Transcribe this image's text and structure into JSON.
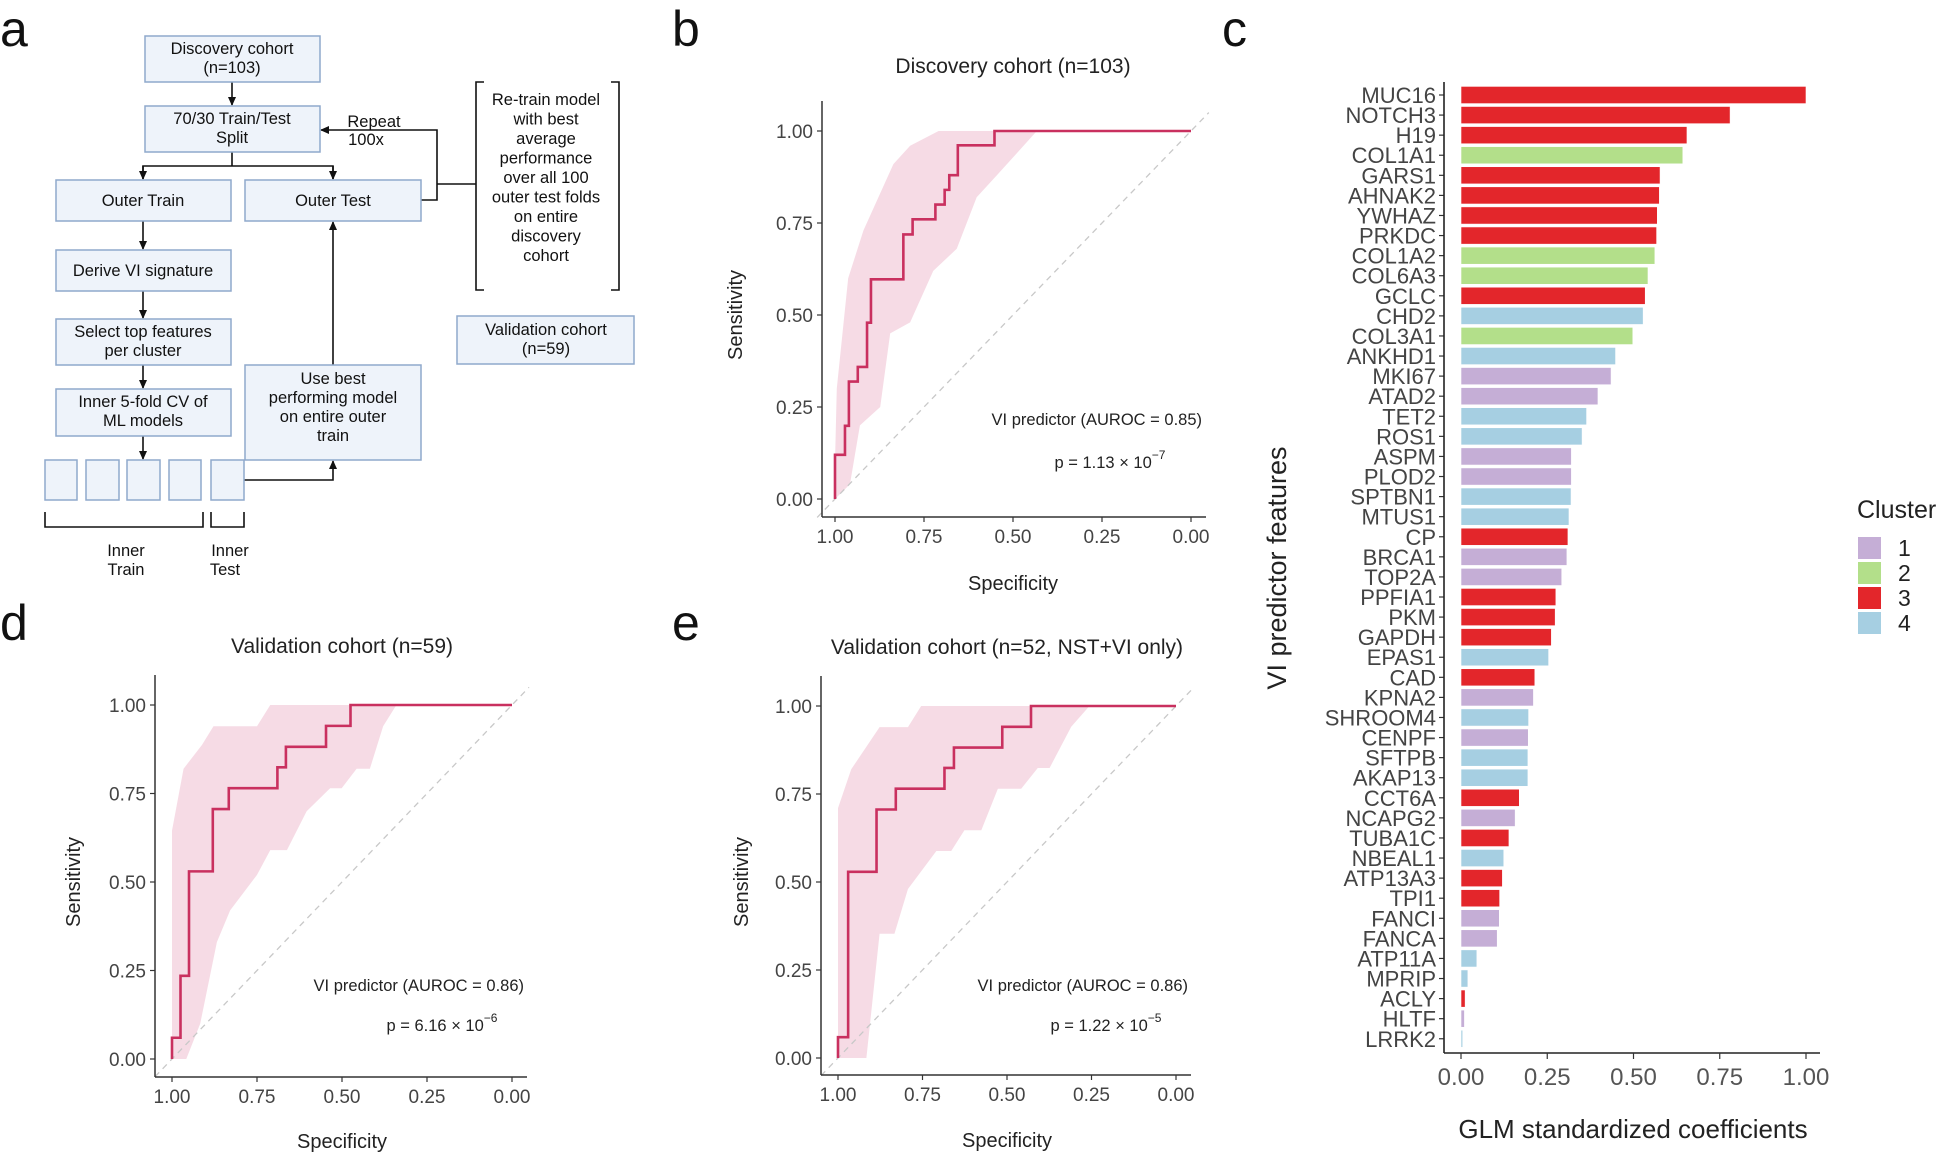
{
  "panel_letters": {
    "a": "a",
    "b": "b",
    "c": "c",
    "d": "d",
    "e": "e"
  },
  "flowchart": {
    "discovery": [
      "Discovery cohort",
      "(n=103)"
    ],
    "split": [
      "70/30 Train/Test",
      "Split"
    ],
    "repeat": [
      "Repeat",
      "100x"
    ],
    "outer_train": [
      "Outer Train"
    ],
    "outer_test": [
      "Outer Test"
    ],
    "derive": [
      "Derive VI signature"
    ],
    "select": [
      "Select top features",
      "per cluster"
    ],
    "inner_cv": [
      "Inner 5-fold CV of",
      "ML models"
    ],
    "use_best": [
      "Use best",
      "performing model",
      "on entire outer",
      "train"
    ],
    "retrain": [
      "Re-train model",
      "with best",
      "average",
      "performance",
      "over all 100",
      "outer test folds",
      "on entire",
      "discovery",
      "cohort"
    ],
    "validation": [
      "Validation cohort",
      "(n=59)"
    ],
    "inner_train": [
      "Inner",
      "Train"
    ],
    "inner_test": [
      "Inner",
      "Test"
    ]
  },
  "colors": {
    "roc_line": "#c9305f",
    "roc_band": "#f3cfdc",
    "cluster_1": "#c5aed6",
    "cluster_2": "#b3df8a",
    "cluster_3": "#e3262b",
    "cluster_4": "#a6cfe2"
  },
  "chart_data": [
    {
      "panel": "b",
      "type": "line",
      "title": "Discovery cohort (n=103)",
      "xlabel": "Specificity",
      "ylabel": "Sensitivity",
      "xlim": [
        1,
        0
      ],
      "ylim": [
        0,
        1
      ],
      "x_reversed": true,
      "xticks": [
        "1.00",
        "0.75",
        "0.50",
        "0.25",
        "0.00"
      ],
      "yticks": [
        "0.00",
        "0.25",
        "0.50",
        "0.75",
        "1.00"
      ],
      "annotation": "VI predictor (AUROC = 0.85)",
      "p_value": {
        "base": "p = 1.13 × 10",
        "exponent": "−7"
      },
      "series": [
        {
          "name": "VI predictor",
          "points": [
            [
              1,
              0
            ],
            [
              1,
              0.12
            ],
            [
              0.972,
              0.12
            ],
            [
              0.972,
              0.199
            ],
            [
              0.961,
              0.199
            ],
            [
              0.961,
              0.319
            ],
            [
              0.936,
              0.319
            ],
            [
              0.936,
              0.359
            ],
            [
              0.91,
              0.359
            ],
            [
              0.91,
              0.479
            ],
            [
              0.899,
              0.479
            ],
            [
              0.899,
              0.597
            ],
            [
              0.808,
              0.597
            ],
            [
              0.808,
              0.719
            ],
            [
              0.782,
              0.719
            ],
            [
              0.782,
              0.76
            ],
            [
              0.718,
              0.76
            ],
            [
              0.718,
              0.8
            ],
            [
              0.692,
              0.8
            ],
            [
              0.692,
              0.84
            ],
            [
              0.679,
              0.84
            ],
            [
              0.679,
              0.88
            ],
            [
              0.655,
              0.88
            ],
            [
              0.655,
              0.961
            ],
            [
              0.552,
              0.961
            ],
            [
              0.552,
              1
            ],
            [
              0,
              1
            ]
          ]
        }
      ],
      "ci_upper": [
        [
          1,
          0.1
        ],
        [
          0.995,
          0.3
        ],
        [
          0.963,
          0.6
        ],
        [
          0.92,
          0.73
        ],
        [
          0.836,
          0.91
        ],
        [
          0.789,
          0.96
        ],
        [
          0.709,
          1
        ],
        [
          0,
          1
        ]
      ],
      "ci_lower": [
        [
          1,
          0
        ],
        [
          0.958,
          0.04
        ],
        [
          0.93,
          0.2
        ],
        [
          0.873,
          0.25
        ],
        [
          0.845,
          0.45
        ],
        [
          0.789,
          0.48
        ],
        [
          0.724,
          0.62
        ],
        [
          0.658,
          0.68
        ],
        [
          0.602,
          0.82
        ],
        [
          0.545,
          0.88
        ],
        [
          0.489,
          0.94
        ],
        [
          0.433,
          1
        ]
      ],
      "reference_line": "diagonal"
    },
    {
      "panel": "c",
      "type": "bar",
      "orientation": "horizontal",
      "xlabel": "GLM standardized coefficients",
      "ylabel": "VI predictor features",
      "xlim": [
        0,
        1
      ],
      "xticks": [
        "0.00",
        "0.25",
        "0.50",
        "0.75",
        "1.00"
      ],
      "legend": {
        "title": "Cluster",
        "position": "right",
        "entries": [
          "1",
          "2",
          "3",
          "4"
        ]
      },
      "categories": [
        "MUC16",
        "NOTCH3",
        "H19",
        "COL1A1",
        "GARS1",
        "AHNAK2",
        "YWHAZ",
        "PRKDC",
        "COL1A2",
        "COL6A3",
        "GCLC",
        "CHD2",
        "COL3A1",
        "ANKHD1",
        "MKI67",
        "ATAD2",
        "TET2",
        "ROS1",
        "ASPM",
        "PLOD2",
        "SPTBN1",
        "MTUS1",
        "CP",
        "BRCA1",
        "TOP2A",
        "PPFIA1",
        "PKM",
        "GAPDH",
        "EPAS1",
        "CAD",
        "KPNA2",
        "SHROOM4",
        "CENPF",
        "SFTPB",
        "AKAP13",
        "CCT6A",
        "NCAPG2",
        "TUBA1C",
        "NBEAL1",
        "ATP13A3",
        "TPI1",
        "FANCI",
        "FANCA",
        "ATP11A",
        "MPRIP",
        "ACLY",
        "HLTF",
        "LRRK2"
      ],
      "values": [
        1.0,
        0.78,
        0.655,
        0.643,
        0.577,
        0.575,
        0.569,
        0.567,
        0.562,
        0.542,
        0.534,
        0.528,
        0.498,
        0.448,
        0.435,
        0.397,
        0.364,
        0.351,
        0.32,
        0.32,
        0.319,
        0.313,
        0.31,
        0.307,
        0.292,
        0.275,
        0.273,
        0.262,
        0.254,
        0.214,
        0.21,
        0.196,
        0.195,
        0.194,
        0.194,
        0.169,
        0.157,
        0.139,
        0.124,
        0.12,
        0.112,
        0.111,
        0.105,
        0.046,
        0.02,
        0.012,
        0.01,
        0.005
      ],
      "clusters": [
        "3",
        "3",
        "3",
        "2",
        "3",
        "3",
        "3",
        "3",
        "2",
        "2",
        "3",
        "4",
        "2",
        "4",
        "1",
        "1",
        "4",
        "4",
        "1",
        "1",
        "4",
        "4",
        "3",
        "1",
        "1",
        "3",
        "3",
        "3",
        "4",
        "3",
        "1",
        "4",
        "1",
        "4",
        "4",
        "3",
        "1",
        "3",
        "4",
        "3",
        "3",
        "1",
        "1",
        "4",
        "4",
        "3",
        "1",
        "4"
      ]
    },
    {
      "panel": "d",
      "type": "line",
      "title": "Validation cohort (n=59)",
      "xlabel": "Specificity",
      "ylabel": "Sensitivity",
      "xlim": [
        1,
        0
      ],
      "ylim": [
        0,
        1
      ],
      "x_reversed": true,
      "xticks": [
        "1.00",
        "0.75",
        "0.50",
        "0.25",
        "0.00"
      ],
      "yticks": [
        "0.00",
        "0.25",
        "0.50",
        "0.75",
        "1.00"
      ],
      "annotation": "VI predictor (AUROC = 0.86)",
      "p_value": {
        "base": "p = 6.16 × 10",
        "exponent": "−6"
      },
      "series": [
        {
          "name": "VI predictor",
          "points": [
            [
              1,
              0
            ],
            [
              1,
              0.06
            ],
            [
              0.975,
              0.06
            ],
            [
              0.975,
              0.235
            ],
            [
              0.95,
              0.235
            ],
            [
              0.95,
              0.53
            ],
            [
              0.88,
              0.53
            ],
            [
              0.88,
              0.706
            ],
            [
              0.833,
              0.706
            ],
            [
              0.833,
              0.765
            ],
            [
              0.69,
              0.765
            ],
            [
              0.69,
              0.824
            ],
            [
              0.665,
              0.824
            ],
            [
              0.665,
              0.882
            ],
            [
              0.547,
              0.882
            ],
            [
              0.547,
              0.941
            ],
            [
              0.475,
              0.941
            ],
            [
              0.475,
              1
            ],
            [
              0,
              1
            ]
          ]
        }
      ],
      "ci_upper": [
        [
          1,
          0.645
        ],
        [
          0.966,
          0.82
        ],
        [
          0.912,
          0.887
        ],
        [
          0.878,
          0.94
        ],
        [
          0.75,
          0.94
        ],
        [
          0.711,
          1
        ],
        [
          0,
          1
        ]
      ],
      "ci_lower": [
        [
          1,
          0
        ],
        [
          0.958,
          0
        ],
        [
          0.917,
          0.1
        ],
        [
          0.868,
          0.33
        ],
        [
          0.829,
          0.42
        ],
        [
          0.75,
          0.52
        ],
        [
          0.711,
          0.59
        ],
        [
          0.662,
          0.59
        ],
        [
          0.604,
          0.7
        ],
        [
          0.535,
          0.765
        ],
        [
          0.501,
          0.765
        ],
        [
          0.457,
          0.82
        ],
        [
          0.418,
          0.82
        ],
        [
          0.379,
          0.94
        ],
        [
          0.34,
          1
        ]
      ],
      "reference_line": "diagonal"
    },
    {
      "panel": "e",
      "type": "line",
      "title": "Validation cohort (n=52, NST+VI only)",
      "xlabel": "Specificity",
      "ylabel": "Sensitivity",
      "xlim": [
        1,
        0
      ],
      "ylim": [
        0,
        1
      ],
      "x_reversed": true,
      "xticks": [
        "1.00",
        "0.75",
        "0.50",
        "0.25",
        "0.00"
      ],
      "yticks": [
        "0.00",
        "0.25",
        "0.50",
        "0.75",
        "1.00"
      ],
      "annotation": "VI predictor (AUROC = 0.86)",
      "p_value": {
        "base": "p = 1.22 × 10",
        "exponent": "−5"
      },
      "series": [
        {
          "name": "VI predictor",
          "points": [
            [
              1,
              0
            ],
            [
              1,
              0.059
            ],
            [
              0.97,
              0.059
            ],
            [
              0.97,
              0.529
            ],
            [
              0.886,
              0.529
            ],
            [
              0.886,
              0.706
            ],
            [
              0.829,
              0.706
            ],
            [
              0.829,
              0.765
            ],
            [
              0.685,
              0.765
            ],
            [
              0.685,
              0.824
            ],
            [
              0.657,
              0.824
            ],
            [
              0.657,
              0.882
            ],
            [
              0.514,
              0.882
            ],
            [
              0.514,
              0.941
            ],
            [
              0.429,
              0.941
            ],
            [
              0.429,
              1
            ],
            [
              0,
              1
            ]
          ]
        }
      ],
      "ci_upper": [
        [
          1,
          0.71
        ],
        [
          0.961,
          0.82
        ],
        [
          0.877,
          0.94
        ],
        [
          0.793,
          0.94
        ],
        [
          0.754,
          1
        ],
        [
          0,
          1
        ]
      ],
      "ci_lower": [
        [
          1,
          0
        ],
        [
          0.916,
          0
        ],
        [
          0.877,
          0.353
        ],
        [
          0.833,
          0.353
        ],
        [
          0.793,
          0.48
        ],
        [
          0.709,
          0.588
        ],
        [
          0.665,
          0.588
        ],
        [
          0.626,
          0.647
        ],
        [
          0.576,
          0.647
        ],
        [
          0.527,
          0.765
        ],
        [
          0.458,
          0.765
        ],
        [
          0.409,
          0.824
        ],
        [
          0.374,
          0.824
        ],
        [
          0.31,
          0.941
        ],
        [
          0.256,
          1
        ]
      ],
      "reference_line": "diagonal"
    }
  ]
}
